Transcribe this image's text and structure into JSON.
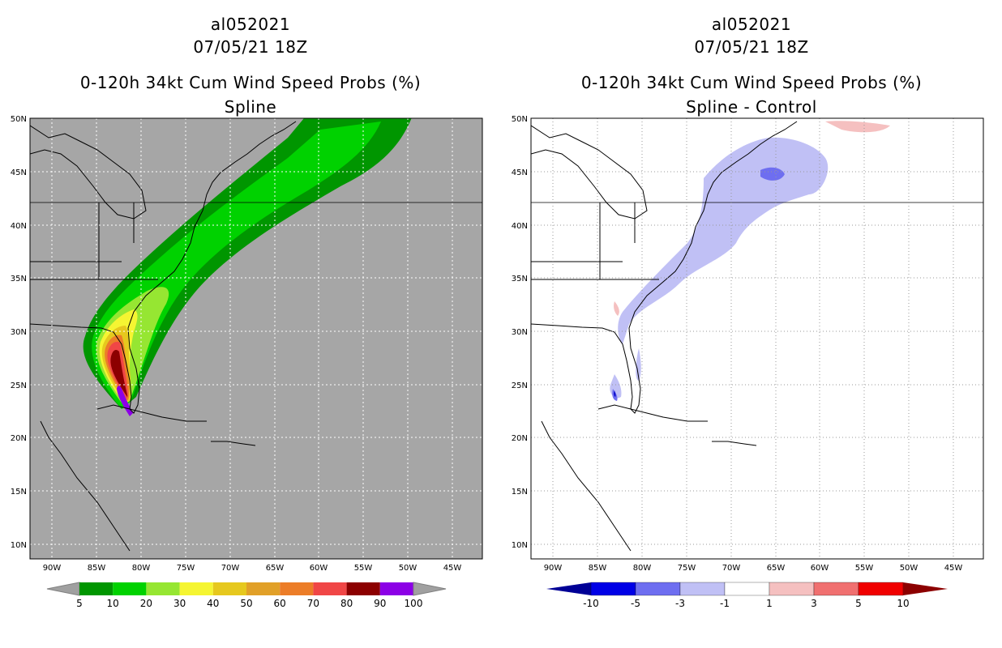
{
  "left": {
    "title_line1": "al052021",
    "title_line2": "07/05/21 18Z",
    "title_line3": "0-120h 34kt Cum Wind Speed Probs (%)",
    "title_line4": "Spline",
    "lat_labels": [
      "50N",
      "45N",
      "40N",
      "35N",
      "30N",
      "25N",
      "20N",
      "15N",
      "10N"
    ],
    "lon_labels": [
      "90W",
      "85W",
      "80W",
      "75W",
      "70W",
      "65W",
      "60W",
      "55W",
      "50W",
      "45W"
    ],
    "colorbar": {
      "labels": [
        "5",
        "10",
        "20",
        "30",
        "40",
        "50",
        "60",
        "70",
        "80",
        "90",
        "100"
      ],
      "colors": [
        "#009600",
        "#00d200",
        "#96e632",
        "#f5f532",
        "#e6c81e",
        "#e1a028",
        "#ec7d28",
        "#f04646",
        "#8c0000",
        "#8c00e6"
      ],
      "end_color": "#a0a0a0"
    },
    "background_color": "#a6a6a6"
  },
  "right": {
    "title_line1": "al052021",
    "title_line2": "07/05/21 18Z",
    "title_line3": "0-120h 34kt Cum Wind Speed Probs (%)",
    "title_line4": "Spline - Control",
    "lat_labels": [
      "50N",
      "45N",
      "40N",
      "35N",
      "30N",
      "25N",
      "20N",
      "15N",
      "10N"
    ],
    "lon_labels": [
      "90W",
      "85W",
      "80W",
      "75W",
      "70W",
      "65W",
      "60W",
      "55W",
      "50W",
      "45W"
    ],
    "colorbar": {
      "labels": [
        "-10",
        "-5",
        "-3",
        "-1",
        "1",
        "3",
        "5",
        "10"
      ],
      "colors": [
        "#0000e6",
        "#6e6ef0",
        "#c0c0f5",
        "#ffffff",
        "#f5c0c0",
        "#f07070",
        "#f00000"
      ],
      "low_end_color": "#000096",
      "high_end_color": "#8c0000"
    },
    "background_color": "#ffffff"
  }
}
